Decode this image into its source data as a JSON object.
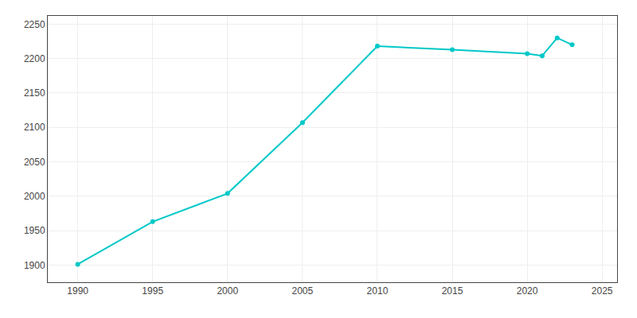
{
  "chart_data": {
    "type": "line",
    "x": [
      1990,
      1995,
      2000,
      2005,
      2010,
      2015,
      2020,
      2021,
      2022,
      2023
    ],
    "values": [
      1901,
      1963,
      2004,
      2107,
      2218,
      2213,
      2207,
      2204,
      2230,
      2220
    ],
    "color": "#00C8C8",
    "marker": "circle",
    "xlim": [
      1988,
      2026
    ],
    "ylim": [
      1875,
      2262
    ],
    "xticks": [
      1990,
      1995,
      2000,
      2005,
      2010,
      2015,
      2020,
      2025
    ],
    "yticks": [
      1900,
      1950,
      2000,
      2050,
      2100,
      2150,
      2200,
      2250
    ],
    "grid": true
  }
}
